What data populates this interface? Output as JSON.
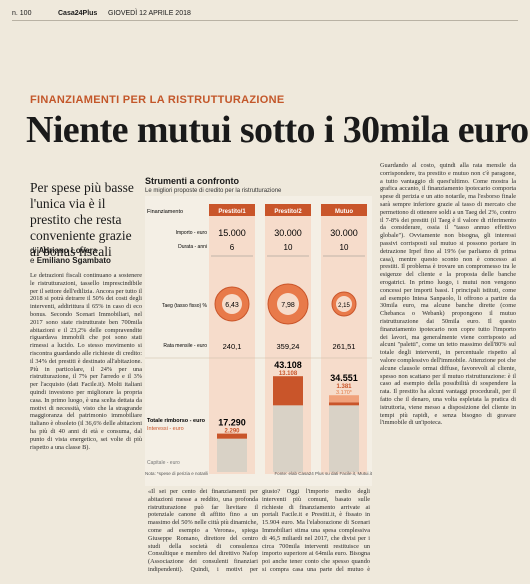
{
  "header": {
    "page": "n. 100",
    "masthead": "Casa24Plus",
    "date": "GIOVEDÌ 12 APRILE 2018"
  },
  "kicker": "FINANZIAMENTI PER LA RISTRUTTURAZIONE",
  "title": "Niente mutui sotto i 30mila euro",
  "subtitle": "Per spese più basse l'unica via è il prestito che resta conveniente grazie ai bonus fiscali",
  "authors": {
    "prefix1": "di",
    "name1": "Adriano Lovera",
    "prefix2": "e",
    "name2": "Emiliano Sgambato"
  },
  "infobox": {
    "title": "Strumenti a confronto",
    "subtitle": "Le migliori proposte di credito per la ristrutturazione",
    "columns": [
      "Finanziamento",
      "Prestito/1",
      "Prestito/2",
      "Mutuo"
    ],
    "rows": [
      {
        "label": "Importo - euro",
        "values": [
          "15.000",
          "30.000",
          "30.000"
        ]
      },
      {
        "label": "Durata - anni",
        "values": [
          "6",
          "10",
          "10"
        ]
      },
      {
        "label": "Taeg (tasso fisso) %",
        "values": [
          "6,43",
          "7,98",
          "2,15"
        ]
      },
      {
        "label": "Rata mensile - euro",
        "values": [
          "240,1",
          "359,24",
          "261,51"
        ]
      }
    ],
    "totals": {
      "label": "Totale rimborso - euro",
      "label2": "Interessi - euro",
      "label3": "Capitale - euro",
      "totals": [
        "17.290",
        "43.108",
        "34.551"
      ],
      "interests": [
        "2.290",
        "13.108",
        "1.381"
      ],
      "extra": "3.170*"
    },
    "note": "Nota: *spese di perizia e notarili",
    "source": "Fonte: elab Casa24 Plus su dati Facile.it, Mutui.it"
  },
  "chart_data": {
    "type": "bar",
    "categories": [
      "Prestito/1",
      "Prestito/2",
      "Mutuo"
    ],
    "series": [
      {
        "name": "Capitale",
        "values": [
          15000,
          30000,
          30000
        ]
      },
      {
        "name": "Interessi",
        "values": [
          2290,
          13108,
          1381
        ]
      }
    ],
    "extra_costs": [
      0,
      0,
      3170
    ]
  },
  "body": {
    "col1": "Le detrazioni fiscali continuano a sostenere le ristrutturazioni, tassello imprescindibile per il settore dell'edilizia. Ancora per tutto il 2018 si potrà detrarre il 50% dei costi degli interventi, addirittura il 65% in caso di eco bonus. Secondo Scenari Immobiliari, nel 2017 sono state ristrutturate ben 700mila abitazioni e il 23,2% delle compravendite riguardava immobili che poi sono stati rimessi a lucido. Lo stesso movimento si riscontra guardando alle richieste di credito: il 34% dei prestiti è destinato all'abitazione. Più in particolare, il 24% per una ristrutturazione, il 7% per l'arredo e il 3% per l'acquisto (dati Facile.it). Molti italiani quindi investono per migliorare la propria casa. In primo luogo, è una scelta dettata da motivi di necessità, visto che la stragrande maggioranza del patrimonio immobiliare italiano è obsoleto (il 36,6% delle abitazioni ha più di 40 anni di età e consuma, dal punto di vista energetico, sei volte di più rispetto a una classe B).",
    "colbot1": "«Il sei per cento dei finanziamenti per abitazioni messe a reddito, una profonda ristrutturazione può far lievitare il potenziale canone di affitto fino a un massimo del 50% nelle città più dinamiche, come ad esempio a Verona», spiega Giuseppe Romano, direttore del centro studi della società di consulenza Consultique e membro del direttivo Nafop (Associazione dei consulenti finanziari indipendenti). Quindi, i motivi per procedere non mancano. Ma quanto costa? E qual è lo strumento",
    "colbot2": "giusto? Oggi l'importo medio degli interventi più comuni, basato sulle richieste di finanziamento arrivate ai portali Facile.it e Prestiti.it, è fissato in 15.904 euro. Ma l'elaborazione di Scenari Immobiliari stima una spesa complessiva di 46,5 miliardi nel 2017, che divisi per i circa 700mila interventi restituisce un importo superiore ai 64mila euro. Bisogna poi anche tener conto che spesso quando si compra casa una parte del mutuo è sufficiente per l'acquisto e un'altra per i lavori di ristrutturazione.",
    "colr": "Guardando al costo, quindi alla rata mensile da corrispondere, tra prestito e mutuo non c'è paragone, a tutto vantaggio di quest'ultimo. Come mostra la grafica accanto, il finanziamento ipotecario comporta spese di perizia e un atto notarile, ma l'esborso finale sarà sempre inferiore grazie al tasso di mercato che permettono di ottenere soldi a un Taeg del 2%, contro il 7-8% dei prestiti (il Taeg è il valore di riferimento da considerare, ossia il \"tasso annuo effettivo globale\"). Ovviamente non bisogna, gli interessi passivi corrisposti sul mutuo si possono portare in detrazione Irpef fino al 19% (se parliamo di prima casa), mentre questo sconto non è concesso ai prestiti. Il problema è trovare un compromesso tra le esigenze del cliente e la proposta delle banche erogatrici. In primo luogo, i mutui non vengono concessi per importi bassi. I principali istituti, come ad esempio Intesa Sanpaolo, li offrono a partire da 30mila euro, ma alcune banche dirette (come Chebanca o Webank) propongono il mutuo ristrutturazione dai 50mila euro. Il questo finanziamento ipotecario non copre tutto l'importo dei lavori, ma generalmente viene corrisposto ad alcuni \"paletti\", come un tetto massimo dell'80% sul totale degli interventi, in percentuale rispetto al valore complessivo dell'immobile. Attenzione poi che alcune clausole ormai diffuse, favorevoli al cliente, spesso non scattano per il mutuo ristrutturazione: è il caso ad esempio della possibilità di sospendere la rata. Il prestito ha alcuni vantaggi procedurali, per il fatto che il denaro, una volta espletata la pratica di istruttoria, viene messo a disposizione del cliente in tempi più rapidi, e senza bisogno di gravare l'immobile di un'ipoteca."
  }
}
